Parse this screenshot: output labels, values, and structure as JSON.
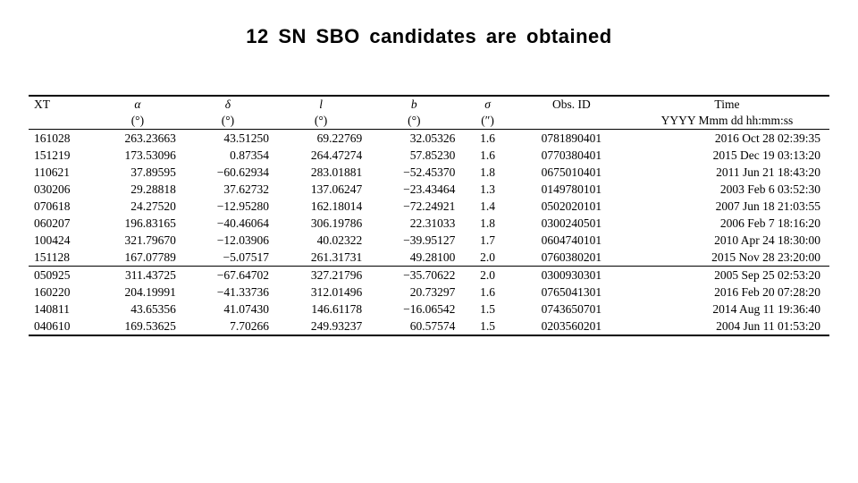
{
  "title": "12 SN SBO candidates are obtained",
  "table": {
    "type": "table",
    "background_color": "#ffffff",
    "text_color": "#000000",
    "rule_color": "#000000",
    "font_family": "Times New Roman",
    "header_fontsize": 13.5,
    "body_fontsize": 13.5,
    "columns": [
      {
        "key": "xt",
        "label": "XT",
        "unit": "",
        "align": "left"
      },
      {
        "key": "alpha",
        "label": "α",
        "unit": "(°)",
        "align": "right"
      },
      {
        "key": "delta",
        "label": "δ",
        "unit": "(°)",
        "align": "right"
      },
      {
        "key": "l",
        "label": "l",
        "unit": "(°)",
        "align": "right"
      },
      {
        "key": "b",
        "label": "b",
        "unit": "(°)",
        "align": "right"
      },
      {
        "key": "sigma",
        "label": "σ",
        "unit": "(″)",
        "align": "center"
      },
      {
        "key": "obsid",
        "label": "Obs. ID",
        "unit": "",
        "align": "center"
      },
      {
        "key": "time",
        "label": "Time",
        "unit": "YYYY Mmm dd hh:mm:ss",
        "align": "right"
      }
    ],
    "groups": [
      {
        "rows": [
          [
            "161028",
            "263.23663",
            "43.51250",
            "69.22769",
            "32.05326",
            "1.6",
            "0781890401",
            "2016 Oct 28 02:39:35"
          ],
          [
            "151219",
            "173.53096",
            "0.87354",
            "264.47274",
            "57.85230",
            "1.6",
            "0770380401",
            "2015 Dec 19 03:13:20"
          ],
          [
            "110621",
            "37.89595",
            "−60.62934",
            "283.01881",
            "−52.45370",
            "1.8",
            "0675010401",
            "2011 Jun 21 18:43:20"
          ],
          [
            "030206",
            "29.28818",
            "37.62732",
            "137.06247",
            "−23.43464",
            "1.3",
            "0149780101",
            "2003 Feb 6 03:52:30"
          ],
          [
            "070618",
            "24.27520",
            "−12.95280",
            "162.18014",
            "−72.24921",
            "1.4",
            "0502020101",
            "2007 Jun 18 21:03:55"
          ],
          [
            "060207",
            "196.83165",
            "−40.46064",
            "306.19786",
            "22.31033",
            "1.8",
            "0300240501",
            "2006 Feb 7 18:16:20"
          ],
          [
            "100424",
            "321.79670",
            "−12.03906",
            "40.02322",
            "−39.95127",
            "1.7",
            "0604740101",
            "2010 Apr 24 18:30:00"
          ],
          [
            "151128",
            "167.07789",
            "−5.07517",
            "261.31731",
            "49.28100",
            "2.0",
            "0760380201",
            "2015 Nov 28 23:20:00"
          ]
        ]
      },
      {
        "rows": [
          [
            "050925",
            "311.43725",
            "−67.64702",
            "327.21796",
            "−35.70622",
            "2.0",
            "0300930301",
            "2005 Sep 25 02:53:20"
          ],
          [
            "160220",
            "204.19991",
            "−41.33736",
            "312.01496",
            "20.73297",
            "1.6",
            "0765041301",
            "2016 Feb 20 07:28:20"
          ],
          [
            "140811",
            "43.65356",
            "41.07430",
            "146.61178",
            "−16.06542",
            "1.5",
            "0743650701",
            "2014 Aug 11 19:36:40"
          ],
          [
            "040610",
            "169.53625",
            "7.70266",
            "249.93237",
            "60.57574",
            "1.5",
            "0203560201",
            "2004 Jun 11 01:53:20"
          ]
        ]
      }
    ]
  }
}
